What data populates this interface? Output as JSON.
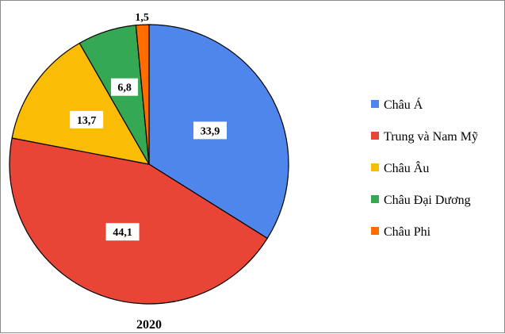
{
  "chart_data": {
    "type": "pie",
    "caption": "2020",
    "start_angle_deg": 0,
    "direction": "clockwise",
    "slices": [
      {
        "name": "Châu Á",
        "value": 33.9,
        "label": "33,9",
        "color": "#4f86ec"
      },
      {
        "name": "Trung và Nam Mỹ",
        "value": 44.1,
        "label": "44,1",
        "color": "#e94537"
      },
      {
        "name": "Châu Âu",
        "value": 13.7,
        "label": "13,7",
        "color": "#fbbc05"
      },
      {
        "name": "Châu Đại Dương",
        "value": 6.8,
        "label": "6,8",
        "color": "#35a853"
      },
      {
        "name": "Châu Phi",
        "value": 1.5,
        "label": "1,5",
        "color": "#ff6d00"
      }
    ],
    "legend_position": "right"
  }
}
